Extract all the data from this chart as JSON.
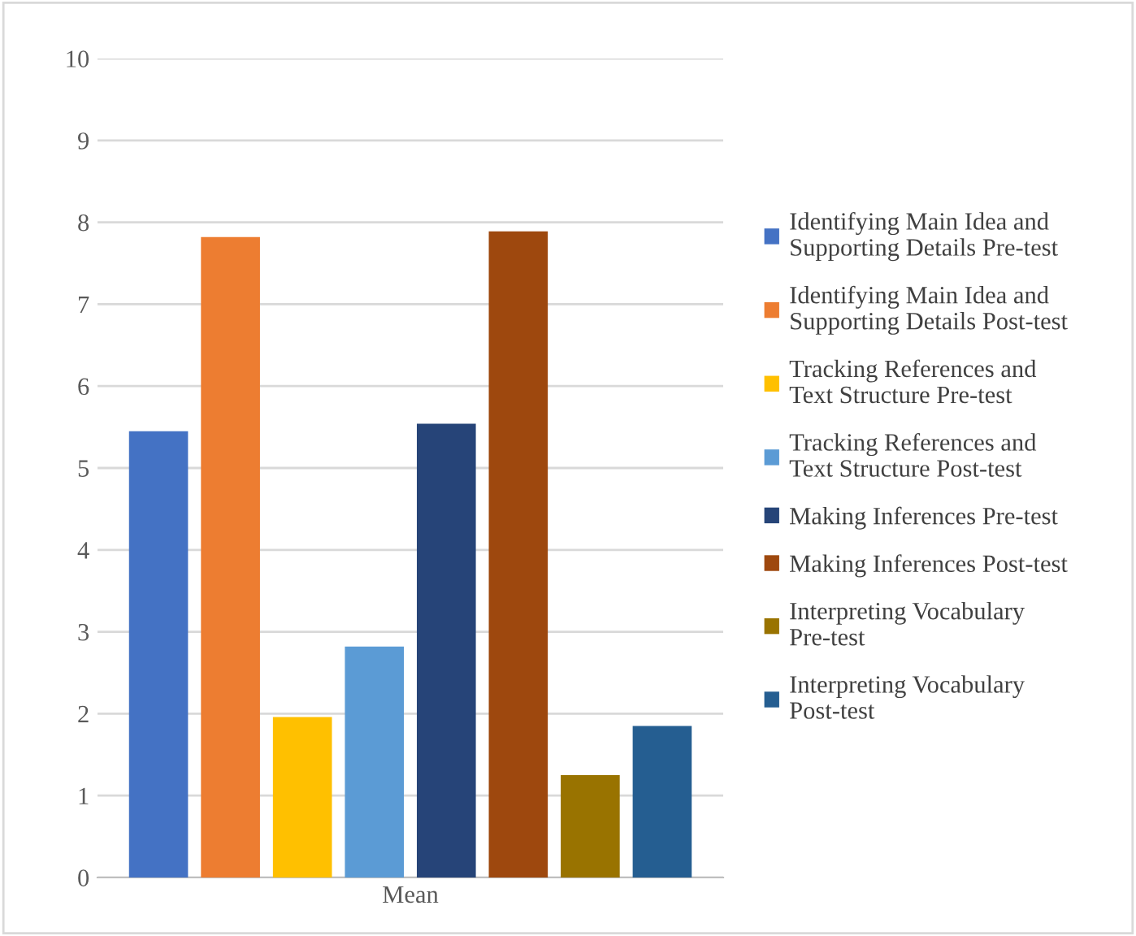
{
  "chart_data": {
    "type": "bar",
    "categories": [
      "Mean"
    ],
    "series": [
      {
        "name": "Identifying Main Idea and\nSupporting Details Pre-test",
        "color": "#4472c4",
        "values": [
          5.45
        ]
      },
      {
        "name": "Identifying Main Idea and\nSupporting Details Post-test",
        "color": "#ed7d31",
        "values": [
          7.82
        ]
      },
      {
        "name": "Tracking References and\nText Structure Pre-test",
        "color": "#ffc000",
        "values": [
          1.96
        ]
      },
      {
        "name": "Tracking References and\nText Structure Post-test",
        "color": "#5b9bd5",
        "values": [
          2.82
        ]
      },
      {
        "name": "Making Inferences Pre-test",
        "color": "#264478",
        "values": [
          5.54
        ]
      },
      {
        "name": "Making Inferences Post-test",
        "color": "#9e480e",
        "values": [
          7.89
        ]
      },
      {
        "name": "Interpreting Vocabulary\nPre-test",
        "color": "#997300",
        "values": [
          1.25
        ]
      },
      {
        "name": "Interpreting Vocabulary\nPost-test",
        "color": "#255e91",
        "values": [
          1.85
        ]
      }
    ],
    "ylim": [
      0,
      10
    ],
    "yticks": [
      0,
      1,
      2,
      3,
      4,
      5,
      6,
      7,
      8,
      9,
      10
    ],
    "grid": "y",
    "legend": "right"
  }
}
